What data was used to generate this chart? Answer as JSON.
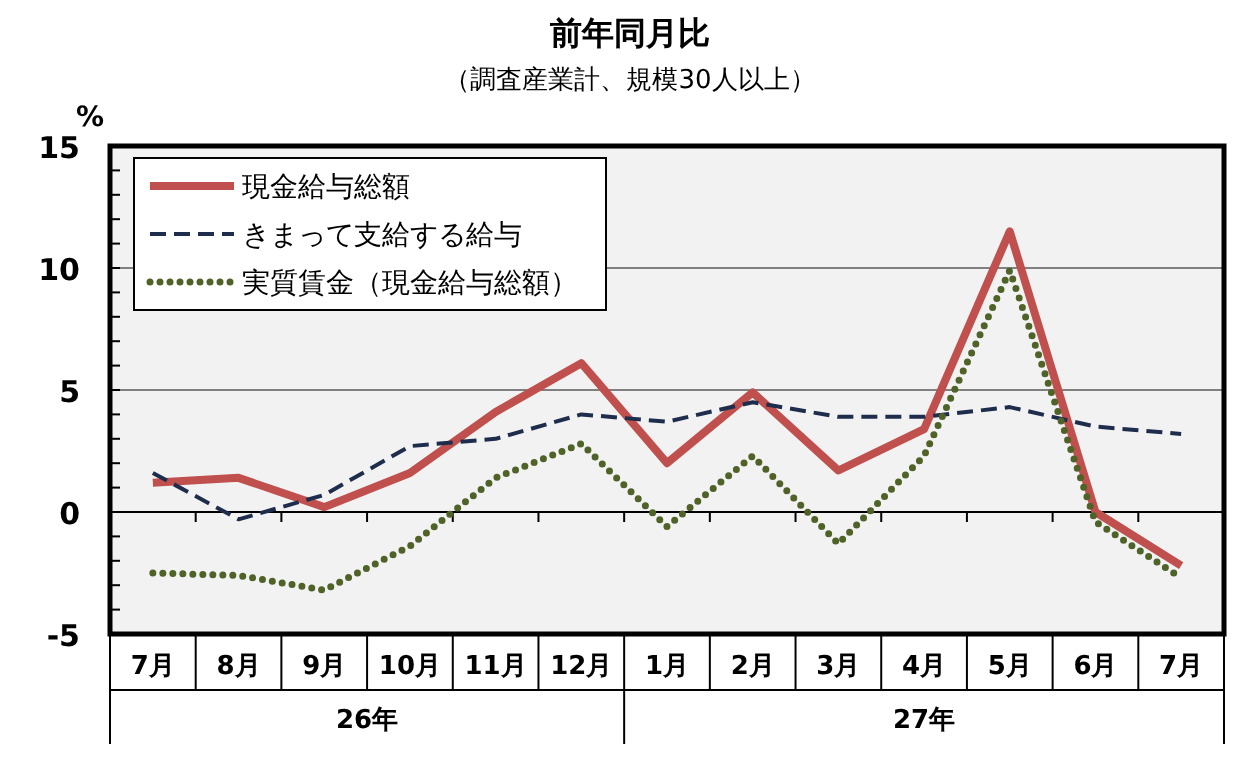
{
  "chart_data": {
    "type": "line",
    "title": "前年同月比",
    "subtitle": "（調査産業計、規模30人以上）",
    "ylabel": "%",
    "categories": [
      "7月",
      "8月",
      "9月",
      "10月",
      "11月",
      "12月",
      "1月",
      "2月",
      "3月",
      "4月",
      "5月",
      "6月",
      "7月"
    ],
    "series": [
      {
        "name": "現金給与総額",
        "color": "#c0504d",
        "line_style": "solid",
        "values": [
          1.2,
          1.4,
          0.2,
          1.6,
          4.1,
          6.1,
          2.0,
          4.9,
          1.7,
          3.4,
          11.5,
          0.0,
          -2.2
        ]
      },
      {
        "name": "きまって支給する給与",
        "color": "#1f2d4d",
        "line_style": "dashed",
        "values": [
          1.6,
          -0.3,
          0.7,
          2.7,
          3.0,
          4.0,
          3.7,
          4.5,
          3.9,
          3.9,
          4.3,
          3.5,
          3.2
        ]
      },
      {
        "name": "実質賃金（現金給与総額）",
        "color": "#4f6228",
        "line_style": "dotted",
        "values": [
          -2.5,
          -2.6,
          -3.2,
          -1.4,
          1.4,
          2.8,
          -0.6,
          2.3,
          -1.3,
          2.3,
          9.9,
          -0.4,
          -2.7
        ]
      }
    ],
    "annotations": [
      "26年",
      "27年"
    ],
    "ylim": [
      -5,
      15
    ],
    "yticks": [
      -5,
      0,
      5,
      10,
      15
    ],
    "grid": "y",
    "legend": "top left",
    "marker": "none"
  }
}
